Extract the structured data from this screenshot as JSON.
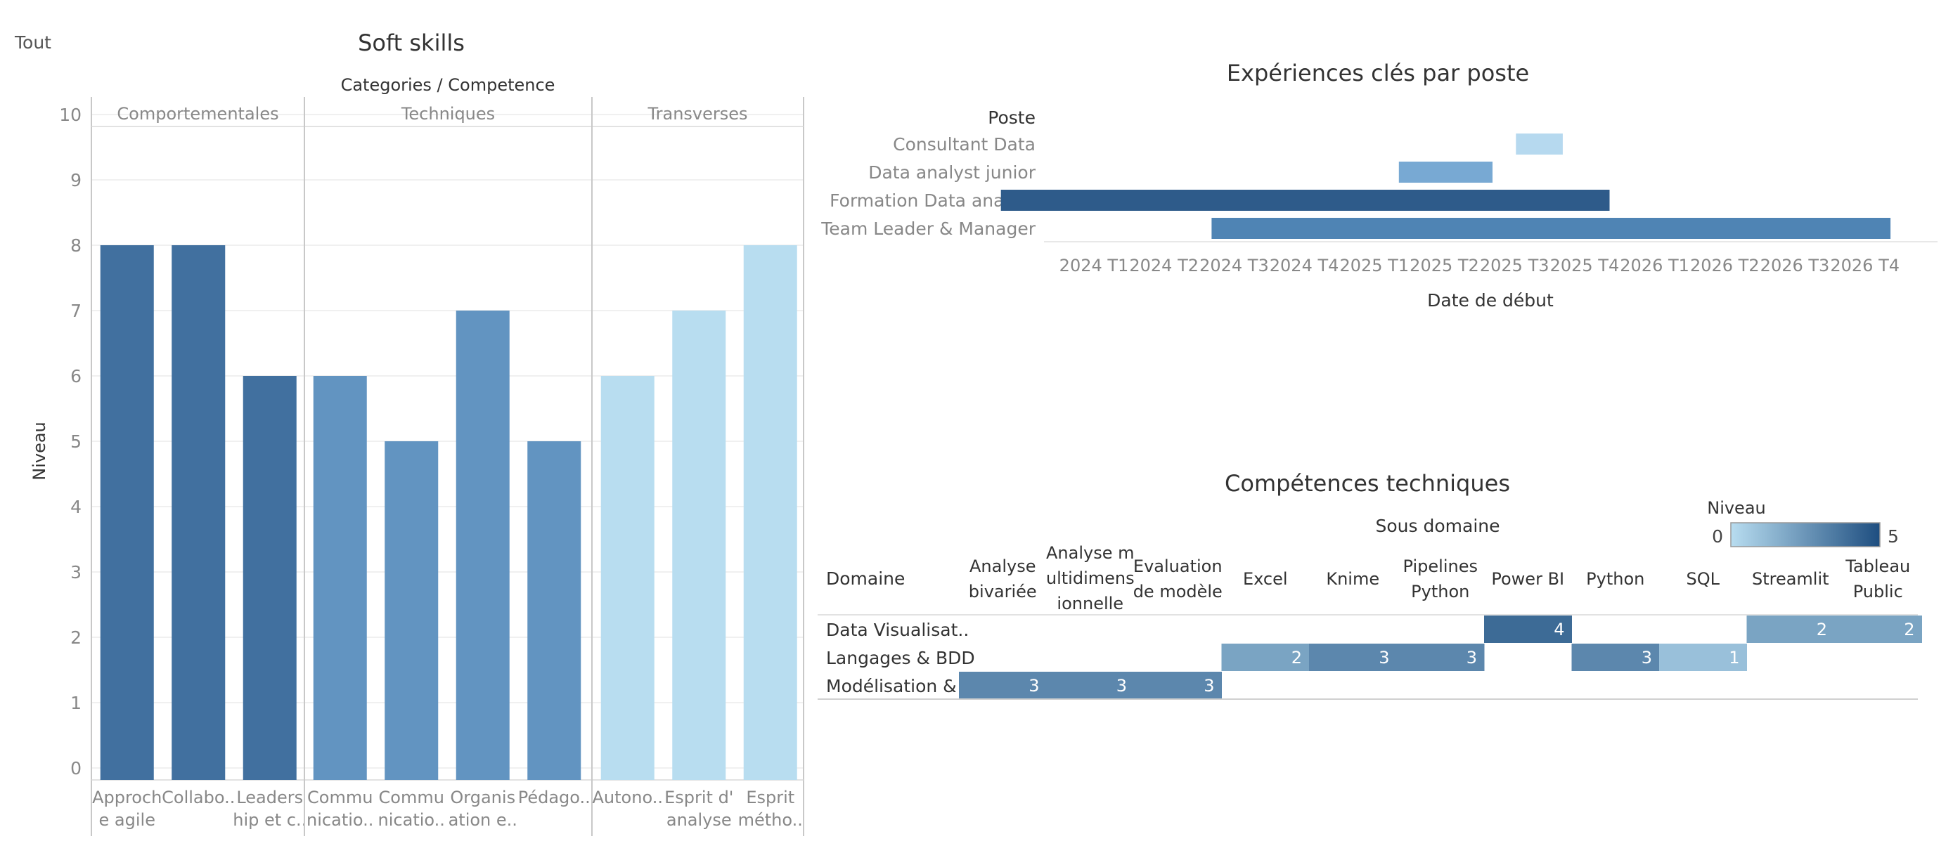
{
  "filter": {
    "label": "Tout"
  },
  "colors": {
    "comportementales": "#41709f",
    "techniques": "#6294c1",
    "transverses": "#b8ddf0",
    "grid": "#ececec",
    "axis_text": "#888888",
    "title_text": "#333333"
  },
  "chart_data": [
    {
      "type": "bar",
      "title": "Soft skills",
      "header": "Categories  /  Competence",
      "ylabel": "Niveau",
      "ylim": [
        0,
        10
      ],
      "yticks": [
        "0",
        "1",
        "2",
        "3",
        "4",
        "5",
        "6",
        "7",
        "8",
        "9",
        "10"
      ],
      "groups": [
        {
          "name": "Comportementales",
          "color": "#41709f",
          "bars": [
            {
              "label": [
                "Approch",
                "e agile"
              ],
              "value": 8
            },
            {
              "label": [
                "Collabo.."
              ],
              "value": 8
            },
            {
              "label": [
                "Leaders",
                "hip et c.."
              ],
              "value": 6
            }
          ]
        },
        {
          "name": "Techniques",
          "color": "#6294c1",
          "bars": [
            {
              "label": [
                "Commu",
                "nicatio.."
              ],
              "value": 6
            },
            {
              "label": [
                "Commu",
                "nicatio.."
              ],
              "value": 5
            },
            {
              "label": [
                "Organis",
                "ation e.."
              ],
              "value": 7
            },
            {
              "label": [
                "Pédago.."
              ],
              "value": 5
            }
          ]
        },
        {
          "name": "Transverses",
          "color": "#b8ddf0",
          "bars": [
            {
              "label": [
                "Autono.."
              ],
              "value": 6
            },
            {
              "label": [
                "Esprit d'",
                "analyse"
              ],
              "value": 7
            },
            {
              "label": [
                "Esprit",
                "métho.."
              ],
              "value": 8
            }
          ]
        }
      ]
    },
    {
      "type": "gantt",
      "title": "Expériences clés par poste",
      "row_header": "Poste",
      "xlabel": "Date de début",
      "xticks": [
        "2024 T1",
        "2024 T2",
        "2024 T3",
        "2024 T4",
        "2025 T1",
        "2025 T2",
        "2025 T3",
        "2025 T4",
        "2026 T1",
        "2026 T2",
        "2026 T3",
        "2026 T4"
      ],
      "rows": [
        {
          "label": "Consultant Data",
          "start": "2025-10",
          "end": "2025-12",
          "color": "#b6d9ef"
        },
        {
          "label": "Data analyst junior",
          "start": "2025-05",
          "end": "2025-09",
          "color": "#78a9d3"
        },
        {
          "label": "Formation Data analyst",
          "start": "2023-12",
          "end": "2026-02",
          "color": "#2e5b8a"
        },
        {
          "label": "Team Leader & Manager",
          "start": "2024-09",
          "end": "2027-02",
          "color": "#4f84b4"
        }
      ]
    },
    {
      "type": "heatmap",
      "title": "Compétences techniques",
      "col_header": "Sous domaine",
      "row_header": "Domaine",
      "legend": {
        "title": "Niveau",
        "min": "0",
        "max": "5"
      },
      "columns": [
        [
          "Analyse",
          "bivariée"
        ],
        [
          "Analyse m",
          "ultidimens",
          "ionnelle"
        ],
        [
          "Evaluation",
          "de modèle"
        ],
        [
          "Excel"
        ],
        [
          "Knime"
        ],
        [
          "Pipelines",
          "Python"
        ],
        [
          "Power BI"
        ],
        [
          "Python"
        ],
        [
          "SQL"
        ],
        [
          "Streamlit"
        ],
        [
          "Tableau",
          "Public"
        ]
      ],
      "rows": [
        {
          "label": "Data Visualisat..",
          "values": [
            null,
            null,
            null,
            null,
            null,
            null,
            4,
            null,
            null,
            2,
            2
          ]
        },
        {
          "label": "Langages & BDD",
          "values": [
            null,
            null,
            null,
            2,
            3,
            3,
            null,
            3,
            1,
            null,
            null
          ]
        },
        {
          "label": "Modélisation & ..",
          "values": [
            3,
            3,
            3,
            null,
            null,
            null,
            null,
            null,
            null,
            null,
            null
          ]
        }
      ]
    }
  ]
}
